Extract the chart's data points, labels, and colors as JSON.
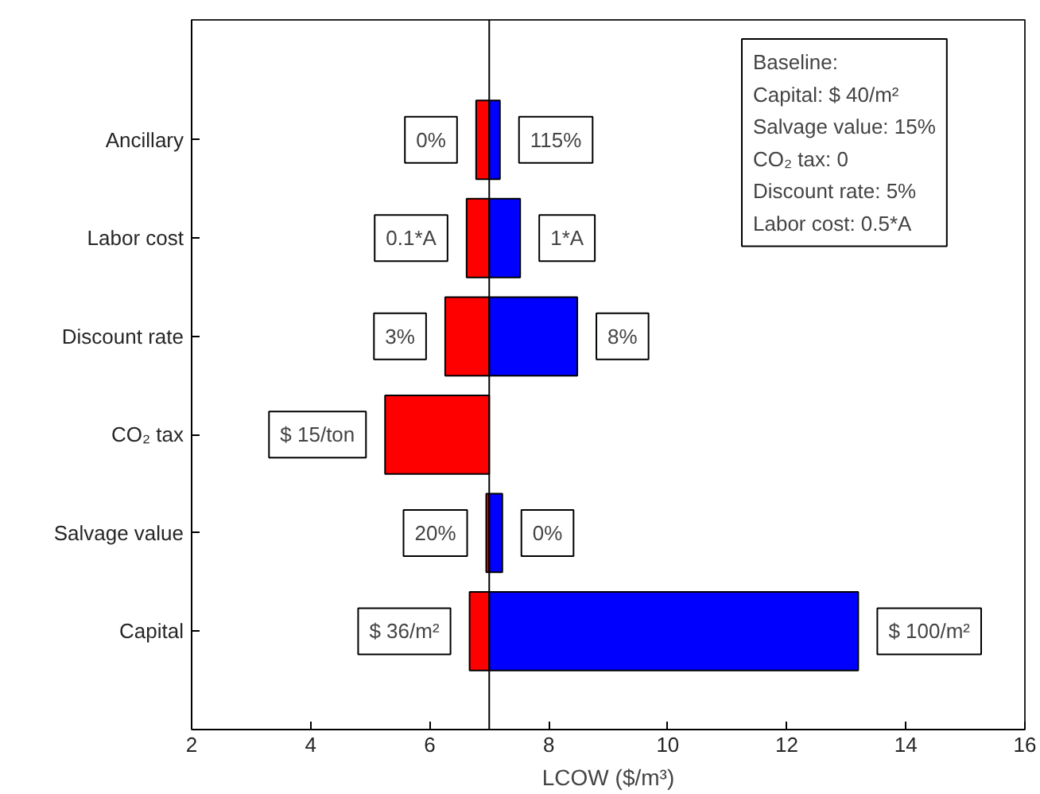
{
  "chart_data": {
    "type": "bar",
    "orientation": "horizontal",
    "xlabel": "LCOW ($/m³)",
    "categories": [
      "Ancillary",
      "Labor cost",
      "Discount rate",
      "CO₂ tax",
      "Salvage value",
      "Capital"
    ],
    "series": [
      {
        "color": "#ff0000",
        "base": [
          7,
          7,
          7,
          7,
          7,
          7
        ],
        "values": [
          -0.22,
          -0.38,
          -0.74,
          -1.75,
          -0.05,
          -0.33
        ]
      },
      {
        "color": "#0000ff",
        "base": [
          7,
          7,
          7,
          null,
          7,
          7
        ],
        "values": [
          0.18,
          0.52,
          1.48,
          null,
          0.22,
          6.2
        ]
      }
    ],
    "xlim": [
      2,
      16
    ],
    "xticks": [
      2,
      4,
      6,
      8,
      10,
      12,
      14,
      16
    ],
    "ref_lines": [
      {
        "axis": "x",
        "value": 7,
        "color": "#000000"
      }
    ],
    "annotations": [
      "Baseline:\nCapital: $ 40/m²\nSalvage value: 15%\nCO₂ tax: 0\nDiscount rate: 5%\nLabor cost: 0.5*A",
      {
        "text": "0%",
        "x": 6.78,
        "y": "Ancillary"
      },
      {
        "text": "115%",
        "x": 7.18,
        "y": "Ancillary"
      },
      {
        "text": "0.1*A",
        "x": 6.62,
        "y": "Labor cost"
      },
      {
        "text": "1*A",
        "x": 7.52,
        "y": "Labor cost"
      },
      {
        "text": "3%",
        "x": 6.26,
        "y": "Discount rate"
      },
      {
        "text": "8%",
        "x": 8.48,
        "y": "Discount rate"
      },
      {
        "text": "$ 15/ton",
        "x": 5.25,
        "y": "CO₂ tax"
      },
      {
        "text": "20%",
        "x": 6.95,
        "y": "Salvage value"
      },
      {
        "text": "0%",
        "x": 7.22,
        "y": "Salvage value"
      },
      {
        "text": "$ 36/m²",
        "x": 6.67,
        "y": "Capital"
      },
      {
        "text": "$ 100/m²",
        "x": 13.2,
        "y": "Capital"
      }
    ],
    "grid": false
  }
}
